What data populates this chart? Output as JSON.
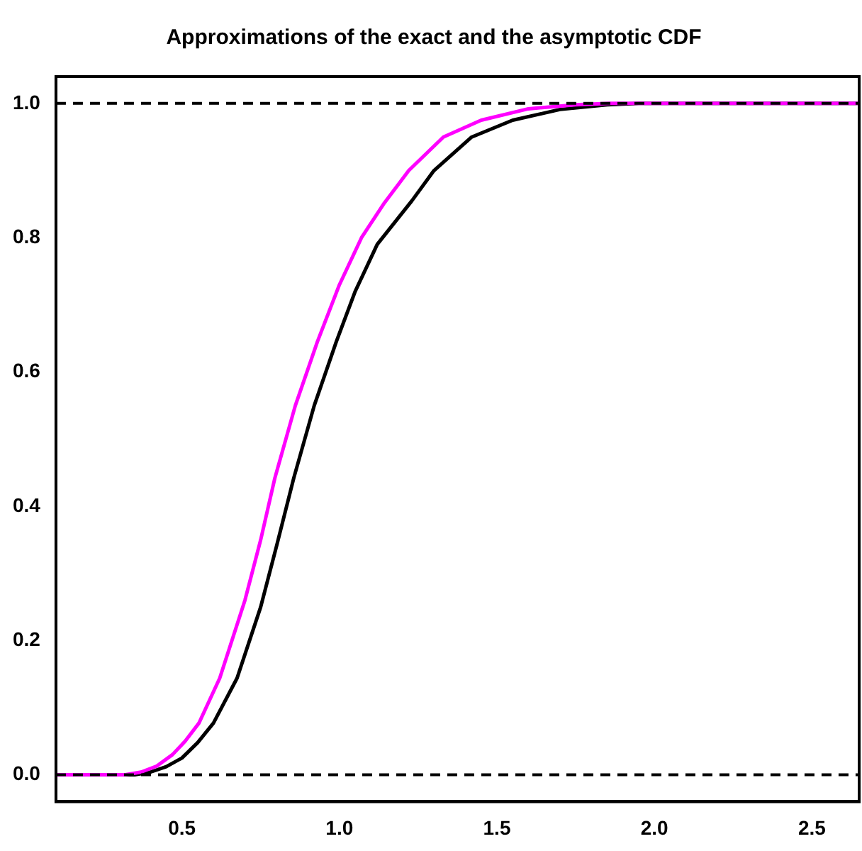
{
  "chart_data": {
    "type": "line",
    "title": "Approximations of the exact and the asymptotic CDF",
    "xlim": [
      0.1,
      2.65
    ],
    "xticks": [
      0.5,
      {
        "value": 1,
        "label": "1.0"
      },
      1.5,
      {
        "value": 2,
        "label": "2.0"
      },
      2.5
    ],
    "ylim": [
      -0.04,
      1.04
    ],
    "yticks": [
      {
        "value": 0,
        "label": "0.0"
      },
      0.2,
      0.4,
      0.6,
      0.8,
      {
        "value": 1,
        "label": "1.0"
      }
    ],
    "grid": false,
    "legend": false,
    "marker": "none",
    "line_style": "solid",
    "ref_lines": [
      {
        "axis": "y",
        "value": 0,
        "line_style": "dashed",
        "color": "#000000"
      },
      {
        "axis": "y",
        "value": 1,
        "line_style": "dashed",
        "color": "#000000"
      }
    ],
    "series": [
      {
        "color": "#ff00ff",
        "x": [
          0.1,
          0.32,
          0.37,
          0.42,
          0.47,
          0.51,
          0.554,
          0.62,
          0.7,
          0.75,
          0.795,
          0.86,
          0.93,
          1.0,
          1.07,
          1.14,
          1.22,
          1.33,
          1.45,
          1.6,
          1.75,
          1.86,
          2.65
        ],
        "values": [
          0,
          0,
          0.004,
          0.013,
          0.03,
          0.05,
          0.077,
          0.144,
          0.26,
          0.35,
          0.442,
          0.55,
          0.645,
          0.73,
          0.8,
          0.85,
          0.9,
          0.95,
          0.975,
          0.992,
          0.998,
          1,
          1
        ]
      },
      {
        "color": "#000000",
        "x": [
          0.1,
          0.35,
          0.4,
          0.45,
          0.5,
          0.55,
          0.6,
          0.675,
          0.75,
          0.8,
          0.855,
          0.92,
          0.99,
          1.05,
          1.12,
          1.23,
          1.3,
          1.42,
          1.55,
          1.7,
          1.85,
          1.95,
          2.65
        ],
        "values": [
          0,
          0,
          0.004,
          0.012,
          0.025,
          0.048,
          0.077,
          0.144,
          0.25,
          0.34,
          0.442,
          0.55,
          0.645,
          0.72,
          0.79,
          0.855,
          0.9,
          0.95,
          0.975,
          0.991,
          0.998,
          1,
          1
        ]
      }
    ]
  }
}
